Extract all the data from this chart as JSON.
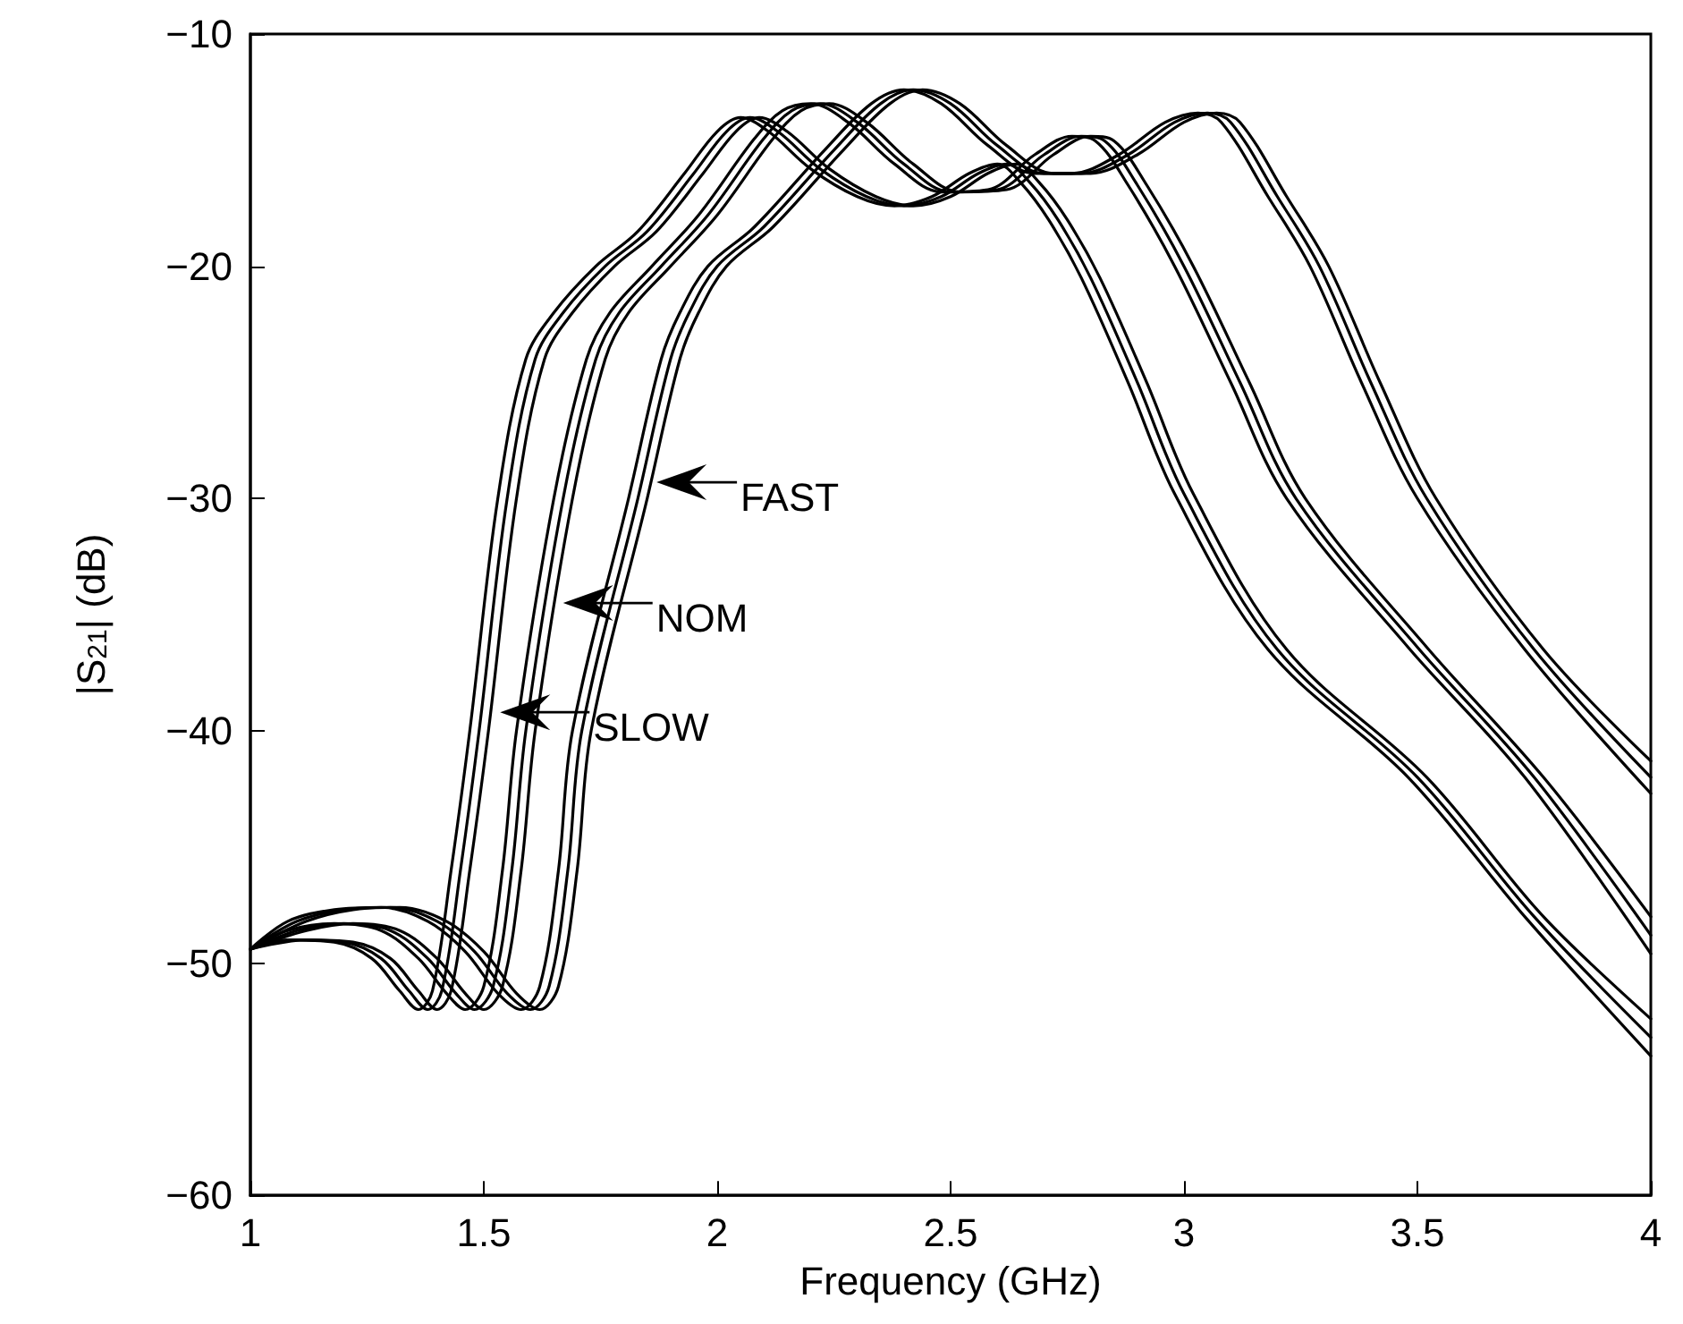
{
  "chart_data": {
    "type": "line",
    "xlabel": "Frequency (GHz)",
    "ylabel": "|S$_{21}$| (dB)",
    "xlim": [
      1,
      4
    ],
    "xticks": [
      1,
      1.5,
      2,
      2.5,
      3,
      3.5,
      4
    ],
    "ylim": [
      -60,
      -10
    ],
    "yticks": [
      -60,
      -50,
      -40,
      -30,
      -20,
      -10
    ],
    "grid": false,
    "marker": "none",
    "line_style": "solid",
    "annotations": [
      {
        "text": "FAST",
        "x": 1.87,
        "y": -29.3
      },
      {
        "text": "NOM",
        "x": 1.67,
        "y": -34.5
      },
      {
        "text": "SLOW",
        "x": 1.535,
        "y": -39.2
      }
    ],
    "series": [
      {
        "color": "#000000",
        "x": [
          1.0,
          1.08,
          1.18,
          1.26,
          1.32,
          1.36,
          1.39,
          1.43,
          1.47,
          1.53,
          1.59,
          1.65,
          1.74,
          1.83,
          1.93,
          2.0,
          2.05,
          2.11,
          2.2,
          2.3,
          2.38,
          2.46,
          2.54,
          2.6,
          2.65,
          2.71,
          2.78,
          2.88,
          2.98,
          3.18,
          3.48,
          3.73,
          4.0
        ],
        "values": [
          -49.4,
          -49.0,
          -49.1,
          -49.8,
          -51.2,
          -52.0,
          -51.2,
          -46,
          -40,
          -30,
          -24,
          -22,
          -20,
          -18.5,
          -16,
          -14.2,
          -13.6,
          -14.2,
          -15.8,
          -17.0,
          -17.4,
          -17.0,
          -16.0,
          -15.6,
          -16.4,
          -18,
          -20.5,
          -25,
          -29.8,
          -36.5,
          -42,
          -48,
          -54.0
        ]
      },
      {
        "color": "#000000",
        "x": [
          1.0,
          1.1,
          1.2,
          1.28,
          1.34,
          1.38,
          1.41,
          1.45,
          1.49,
          1.55,
          1.61,
          1.67,
          1.76,
          1.85,
          1.95,
          2.02,
          2.07,
          2.13,
          2.22,
          2.32,
          2.4,
          2.48,
          2.56,
          2.62,
          2.67,
          2.73,
          2.8,
          2.9,
          3.0,
          3.2,
          3.5,
          3.75,
          4.0
        ],
        "values": [
          -49.4,
          -49.0,
          -49.1,
          -49.8,
          -51.2,
          -52.0,
          -51.2,
          -46,
          -40,
          -30,
          -24,
          -22,
          -20,
          -18.5,
          -16,
          -14.2,
          -13.6,
          -14.2,
          -15.8,
          -17.0,
          -17.4,
          -17.0,
          -16.0,
          -15.6,
          -16.4,
          -18,
          -20.5,
          -25,
          -29.8,
          -36.5,
          -42,
          -48,
          -53.2
        ]
      },
      {
        "color": "#000000",
        "x": [
          1.0,
          1.12,
          1.22,
          1.3,
          1.36,
          1.4,
          1.43,
          1.47,
          1.51,
          1.57,
          1.63,
          1.69,
          1.78,
          1.87,
          1.97,
          2.04,
          2.09,
          2.15,
          2.24,
          2.34,
          2.42,
          2.5,
          2.58,
          2.64,
          2.69,
          2.75,
          2.82,
          2.92,
          3.02,
          3.22,
          3.52,
          3.77,
          4.0
        ],
        "values": [
          -49.4,
          -49.0,
          -49.1,
          -49.8,
          -51.2,
          -52.0,
          -51.2,
          -46,
          -40,
          -30,
          -24,
          -22,
          -20,
          -18.5,
          -16,
          -14.2,
          -13.6,
          -14.2,
          -15.8,
          -17.0,
          -17.4,
          -17.0,
          -16.0,
          -15.6,
          -16.4,
          -18,
          -20.5,
          -25,
          -29.8,
          -36.5,
          -42,
          -48,
          -52.4
        ]
      },
      {
        "color": "#000000",
        "x": [
          1.0,
          1.08,
          1.18,
          1.28,
          1.36,
          1.42,
          1.46,
          1.5,
          1.54,
          1.57,
          1.65,
          1.72,
          1.77,
          1.86,
          1.96,
          2.08,
          2.14,
          2.2,
          2.28,
          2.38,
          2.48,
          2.58,
          2.68,
          2.76,
          2.81,
          2.88,
          2.98,
          3.1,
          3.22,
          3.48,
          3.73,
          4.0
        ],
        "values": [
          -49.4,
          -48.6,
          -48.3,
          -48.6,
          -49.8,
          -51.3,
          -52,
          -51,
          -46,
          -40,
          -30,
          -24,
          -22,
          -20,
          -17.8,
          -14.5,
          -13.3,
          -13.0,
          -13.8,
          -15.6,
          -16.8,
          -16.7,
          -15.2,
          -14.4,
          -14.6,
          -16.5,
          -20,
          -25,
          -30,
          -36.4,
          -42,
          -49.6
        ]
      },
      {
        "color": "#000000",
        "x": [
          1.0,
          1.1,
          1.2,
          1.3,
          1.38,
          1.44,
          1.48,
          1.52,
          1.56,
          1.59,
          1.67,
          1.74,
          1.79,
          1.88,
          1.98,
          2.1,
          2.16,
          2.22,
          2.3,
          2.4,
          2.5,
          2.6,
          2.7,
          2.78,
          2.83,
          2.9,
          3.0,
          3.12,
          3.24,
          3.5,
          3.75,
          4.0
        ],
        "values": [
          -49.4,
          -48.6,
          -48.3,
          -48.6,
          -49.8,
          -51.3,
          -52,
          -51,
          -46,
          -40,
          -30,
          -24,
          -22,
          -20,
          -17.8,
          -14.5,
          -13.3,
          -13.0,
          -13.8,
          -15.6,
          -16.8,
          -16.7,
          -15.2,
          -14.4,
          -14.6,
          -16.5,
          -20,
          -25,
          -30,
          -36.4,
          -42,
          -48.8
        ]
      },
      {
        "color": "#000000",
        "x": [
          1.0,
          1.12,
          1.22,
          1.32,
          1.4,
          1.46,
          1.5,
          1.54,
          1.58,
          1.61,
          1.69,
          1.76,
          1.81,
          1.9,
          2.0,
          2.12,
          2.18,
          2.24,
          2.32,
          2.42,
          2.52,
          2.62,
          2.72,
          2.8,
          2.85,
          2.92,
          3.02,
          3.14,
          3.26,
          3.52,
          3.77,
          4.0
        ],
        "values": [
          -49.4,
          -48.6,
          -48.3,
          -48.6,
          -49.8,
          -51.3,
          -52,
          -51,
          -46,
          -40,
          -30,
          -24,
          -22,
          -20,
          -17.8,
          -14.5,
          -13.3,
          -13.0,
          -13.8,
          -15.6,
          -16.8,
          -16.7,
          -15.2,
          -14.4,
          -14.6,
          -16.5,
          -20,
          -25,
          -30,
          -36.4,
          -42,
          -48.0
        ]
      },
      {
        "color": "#000000",
        "x": [
          1.0,
          1.08,
          1.18,
          1.28,
          1.38,
          1.46,
          1.53,
          1.58,
          1.62,
          1.66,
          1.69,
          1.81,
          1.88,
          1.92,
          1.98,
          2.08,
          2.23,
          2.33,
          2.4,
          2.48,
          2.58,
          2.68,
          2.76,
          2.86,
          2.96,
          3.03,
          3.08,
          3.18,
          3.27,
          3.38,
          3.5,
          3.73,
          4.0
        ],
        "values": [
          -49.4,
          -48.2,
          -47.7,
          -47.6,
          -48.2,
          -49.5,
          -51.3,
          -52,
          -51,
          -46,
          -40,
          -30,
          -24,
          -22,
          -20,
          -18.3,
          -15,
          -13,
          -12.4,
          -13.0,
          -14.8,
          -16.0,
          -16.0,
          -15.2,
          -13.8,
          -13.4,
          -13.8,
          -17,
          -20,
          -25,
          -30,
          -36.5,
          -42.7
        ]
      },
      {
        "color": "#000000",
        "x": [
          1.0,
          1.1,
          1.2,
          1.3,
          1.4,
          1.48,
          1.55,
          1.6,
          1.64,
          1.68,
          1.71,
          1.83,
          1.9,
          1.94,
          2.0,
          2.1,
          2.25,
          2.35,
          2.42,
          2.5,
          2.6,
          2.7,
          2.78,
          2.88,
          2.98,
          3.05,
          3.1,
          3.2,
          3.29,
          3.4,
          3.52,
          3.75,
          4.0
        ],
        "values": [
          -49.4,
          -48.2,
          -47.7,
          -47.6,
          -48.2,
          -49.5,
          -51.3,
          -52,
          -51,
          -46,
          -40,
          -30,
          -24,
          -22,
          -20,
          -18.3,
          -15,
          -13,
          -12.4,
          -13.0,
          -14.8,
          -16.0,
          -16.0,
          -15.2,
          -13.8,
          -13.4,
          -13.8,
          -17,
          -20,
          -25,
          -30,
          -36.5,
          -42
        ]
      },
      {
        "color": "#000000",
        "x": [
          1.0,
          1.12,
          1.22,
          1.32,
          1.42,
          1.5,
          1.57,
          1.62,
          1.66,
          1.7,
          1.73,
          1.85,
          1.92,
          1.96,
          2.02,
          2.12,
          2.27,
          2.37,
          2.44,
          2.52,
          2.62,
          2.72,
          2.8,
          2.9,
          3.0,
          3.07,
          3.12,
          3.22,
          3.31,
          3.42,
          3.54,
          3.77,
          4.0
        ],
        "values": [
          -49.4,
          -48.2,
          -47.7,
          -47.6,
          -48.2,
          -49.5,
          -51.3,
          -52,
          -51,
          -46,
          -40,
          -30,
          -24,
          -22,
          -20,
          -18.3,
          -15,
          -13,
          -12.4,
          -13.0,
          -14.8,
          -16.0,
          -16.0,
          -15.2,
          -13.8,
          -13.4,
          -13.8,
          -17,
          -20,
          -25,
          -30,
          -36.5,
          -41.3
        ]
      }
    ]
  }
}
